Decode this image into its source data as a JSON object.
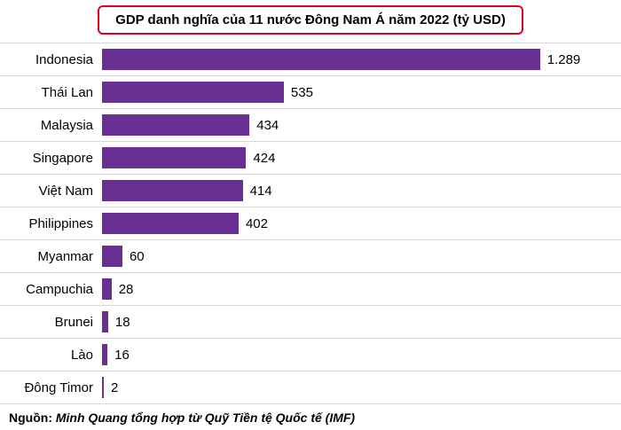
{
  "title": "GDP danh nghĩa của 11 nước Đông Nam Á năm 2022 (tỷ USD)",
  "source": {
    "label": "Nguồn:",
    "text": " Minh Quang tổng hợp từ Quỹ Tiền tệ Quốc tế (IMF)"
  },
  "colors": {
    "bar": "#6a2f92",
    "title_border": "#e8001b",
    "separator": "#d9d9d9"
  },
  "chart_data": {
    "type": "bar",
    "orientation": "horizontal",
    "title": "GDP danh nghĩa của 11 nước Đông Nam Á năm 2022 (tỷ USD)",
    "categories": [
      "Indonesia",
      "Thái Lan",
      "Malaysia",
      "Singapore",
      "Việt Nam",
      "Philippines",
      "Myanmar",
      "Campuchia",
      "Brunei",
      "Lào",
      "Đông Timor"
    ],
    "values": [
      1289,
      535,
      434,
      424,
      414,
      402,
      60,
      28,
      18,
      16,
      2
    ],
    "value_labels": [
      "1.289",
      "535",
      "434",
      "424",
      "414",
      "402",
      "60",
      "28",
      "18",
      "16",
      "2"
    ],
    "unit": "tỷ USD",
    "xlabel": "",
    "ylabel": "",
    "xlim": [
      0,
      1350
    ],
    "grid": false,
    "legend": false,
    "source": "Nguồn: Minh Quang tổng hợp từ Quỹ Tiền tệ Quốc tế (IMF)"
  }
}
